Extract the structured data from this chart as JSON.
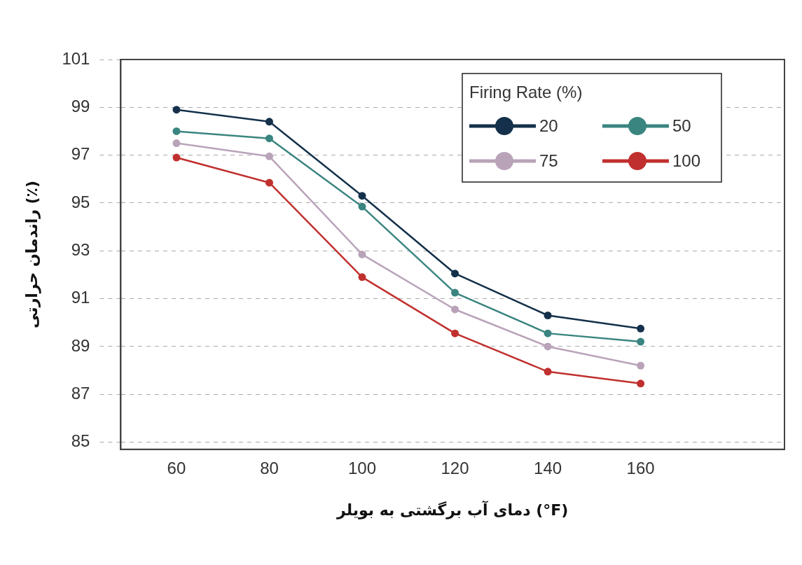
{
  "chart_data": {
    "type": "line",
    "xlabel": "دمای آب برگشتی به بویلر (°F)",
    "ylabel": "راندمان حرارتی (٪)",
    "legend_title": "Firing Rate (%)",
    "x": [
      60,
      80,
      100,
      120,
      140,
      160
    ],
    "series": [
      {
        "name": "20",
        "color": "#14304a",
        "values": [
          98.9,
          98.4,
          95.3,
          92.05,
          90.3,
          89.75
        ]
      },
      {
        "name": "50",
        "color": "#3a8580",
        "values": [
          98.0,
          97.7,
          94.85,
          91.25,
          89.55,
          89.2
        ]
      },
      {
        "name": "75",
        "color": "#b9a3b9",
        "values": [
          97.5,
          96.95,
          92.85,
          90.55,
          89.0,
          88.2
        ]
      },
      {
        "name": "100",
        "color": "#c0302e",
        "values": [
          96.9,
          95.85,
          91.9,
          89.55,
          87.95,
          87.45
        ]
      }
    ],
    "xlim": [
      48,
      191
    ],
    "xticks": [
      60,
      80,
      100,
      120,
      140,
      160
    ],
    "ylim": [
      84.7,
      101
    ],
    "yticks": [
      85,
      87,
      89,
      91,
      93,
      95,
      97,
      99,
      101
    ],
    "grid": "y",
    "legend": "top right",
    "marker": "circle",
    "line_style": "solid"
  }
}
